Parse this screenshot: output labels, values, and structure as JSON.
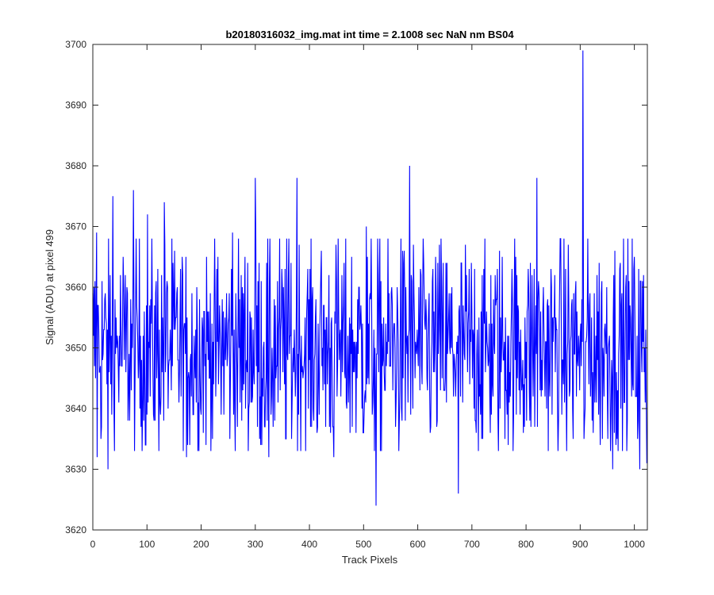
{
  "chart_data": {
    "type": "line",
    "title": "b20180316032_img.mat int time = 2.1008 sec  NaN nm BS04",
    "xlabel": "Track Pixels",
    "ylabel": "Signal (ADU) at pixel 499",
    "xlim": [
      0,
      1024
    ],
    "ylim": [
      3620,
      3700
    ],
    "xticks": [
      0,
      100,
      200,
      300,
      400,
      500,
      600,
      700,
      800,
      900,
      1000
    ],
    "yticks": [
      3620,
      3630,
      3640,
      3650,
      3660,
      3670,
      3680,
      3690,
      3700
    ],
    "grid": false,
    "legend": "none",
    "series": [
      {
        "color": "#0000ff",
        "n_points": 1024,
        "baseline": 3650,
        "typical_range": [
          3633,
          3668
        ],
        "highlights": [
          {
            "x": 1,
            "y": 3652
          },
          {
            "x": 7,
            "y": 3669
          },
          {
            "x": 8,
            "y": 3632
          },
          {
            "x": 28,
            "y": 3630
          },
          {
            "x": 37,
            "y": 3675
          },
          {
            "x": 75,
            "y": 3676
          },
          {
            "x": 101,
            "y": 3672
          },
          {
            "x": 132,
            "y": 3674
          },
          {
            "x": 173,
            "y": 3632
          },
          {
            "x": 258,
            "y": 3669
          },
          {
            "x": 300,
            "y": 3678
          },
          {
            "x": 325,
            "y": 3632
          },
          {
            "x": 377,
            "y": 3678
          },
          {
            "x": 445,
            "y": 3632
          },
          {
            "x": 505,
            "y": 3670
          },
          {
            "x": 523,
            "y": 3624
          },
          {
            "x": 585,
            "y": 3680
          },
          {
            "x": 675,
            "y": 3626
          },
          {
            "x": 820,
            "y": 3678
          },
          {
            "x": 905,
            "y": 3699
          },
          {
            "x": 907,
            "y": 3635
          },
          {
            "x": 960,
            "y": 3630
          },
          {
            "x": 1010,
            "y": 3630
          },
          {
            "x": 1023,
            "y": 3631
          }
        ]
      }
    ]
  }
}
